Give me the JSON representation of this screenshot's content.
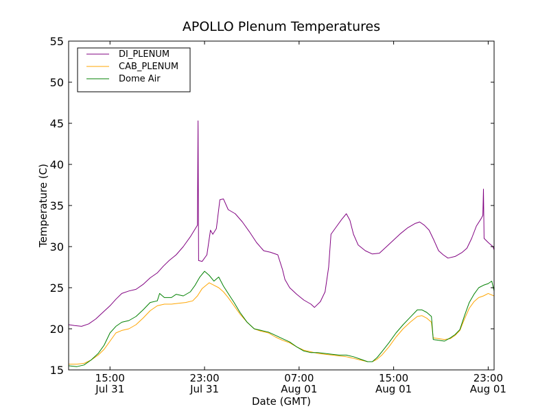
{
  "chart_data": {
    "type": "line",
    "title": "APOLLO Plenum Temperatures",
    "xlabel": "Date (GMT)",
    "ylabel": "Temperature (C)",
    "xlim": [
      11.5,
      47.5
    ],
    "ylim": [
      15,
      55
    ],
    "yticks": [
      15,
      20,
      25,
      30,
      35,
      40,
      45,
      50,
      55
    ],
    "xticks": [
      {
        "x": 15,
        "time": "15:00",
        "date": "Jul 31"
      },
      {
        "x": 23,
        "time": "23:00",
        "date": "Jul 31"
      },
      {
        "x": 31,
        "time": "07:00",
        "date": "Aug 01"
      },
      {
        "x": 39,
        "time": "15:00",
        "date": "Aug 01"
      },
      {
        "x": 47,
        "time": "23:00",
        "date": "Aug 01"
      }
    ],
    "legend_position": "top-left",
    "series": [
      {
        "name": "DI_PLENUM",
        "color": "#800080",
        "points": [
          [
            11.5,
            20.5
          ],
          [
            12.0,
            20.4
          ],
          [
            12.6,
            20.3
          ],
          [
            13.2,
            20.6
          ],
          [
            13.8,
            21.2
          ],
          [
            14.4,
            22.0
          ],
          [
            15.0,
            22.8
          ],
          [
            15.5,
            23.6
          ],
          [
            16.0,
            24.3
          ],
          [
            16.6,
            24.6
          ],
          [
            17.2,
            24.8
          ],
          [
            17.8,
            25.4
          ],
          [
            18.4,
            26.2
          ],
          [
            19.0,
            26.8
          ],
          [
            19.5,
            27.6
          ],
          [
            20.0,
            28.3
          ],
          [
            20.6,
            29.0
          ],
          [
            21.2,
            30.0
          ],
          [
            21.8,
            31.2
          ],
          [
            22.4,
            32.6
          ],
          [
            22.45,
            45.3
          ],
          [
            22.5,
            28.3
          ],
          [
            22.8,
            28.2
          ],
          [
            23.2,
            29.0
          ],
          [
            23.5,
            32.0
          ],
          [
            23.7,
            31.5
          ],
          [
            24.0,
            32.2
          ],
          [
            24.3,
            35.7
          ],
          [
            24.6,
            35.8
          ],
          [
            25.0,
            34.5
          ],
          [
            25.6,
            34.0
          ],
          [
            26.2,
            33.0
          ],
          [
            26.8,
            31.8
          ],
          [
            27.4,
            30.5
          ],
          [
            28.0,
            29.5
          ],
          [
            28.6,
            29.3
          ],
          [
            29.2,
            29.0
          ],
          [
            29.6,
            27.2
          ],
          [
            29.8,
            26.0
          ],
          [
            30.2,
            25.0
          ],
          [
            30.8,
            24.2
          ],
          [
            31.4,
            23.5
          ],
          [
            32.0,
            23.0
          ],
          [
            32.3,
            22.6
          ],
          [
            32.8,
            23.3
          ],
          [
            33.2,
            24.5
          ],
          [
            33.5,
            27.5
          ],
          [
            33.7,
            31.5
          ],
          [
            34.2,
            32.5
          ],
          [
            34.6,
            33.3
          ],
          [
            35.0,
            34.0
          ],
          [
            35.3,
            33.2
          ],
          [
            35.6,
            31.5
          ],
          [
            36.0,
            30.2
          ],
          [
            36.6,
            29.5
          ],
          [
            37.2,
            29.1
          ],
          [
            37.8,
            29.2
          ],
          [
            38.4,
            30.0
          ],
          [
            39.0,
            30.8
          ],
          [
            39.6,
            31.6
          ],
          [
            40.2,
            32.3
          ],
          [
            40.8,
            32.8
          ],
          [
            41.2,
            33.0
          ],
          [
            41.6,
            32.6
          ],
          [
            42.0,
            32.0
          ],
          [
            42.4,
            30.8
          ],
          [
            42.8,
            29.5
          ],
          [
            43.2,
            29.0
          ],
          [
            43.6,
            28.6
          ],
          [
            44.2,
            28.8
          ],
          [
            44.8,
            29.3
          ],
          [
            45.2,
            29.8
          ],
          [
            45.6,
            31.0
          ],
          [
            46.0,
            32.5
          ],
          [
            46.4,
            33.4
          ],
          [
            46.55,
            33.8
          ],
          [
            46.6,
            37.0
          ],
          [
            46.65,
            31.0
          ],
          [
            47.0,
            30.5
          ],
          [
            47.4,
            30.0
          ],
          [
            47.5,
            29.6
          ]
        ]
      },
      {
        "name": "CAB_PLENUM",
        "color": "#FFA500",
        "points": [
          [
            11.5,
            15.7
          ],
          [
            12.2,
            15.7
          ],
          [
            12.8,
            15.8
          ],
          [
            13.4,
            16.2
          ],
          [
            14.0,
            16.8
          ],
          [
            14.5,
            17.5
          ],
          [
            15.0,
            18.5
          ],
          [
            15.5,
            19.5
          ],
          [
            16.0,
            19.8
          ],
          [
            16.6,
            20.0
          ],
          [
            17.2,
            20.5
          ],
          [
            17.8,
            21.3
          ],
          [
            18.4,
            22.2
          ],
          [
            19.0,
            22.8
          ],
          [
            19.6,
            23.0
          ],
          [
            20.2,
            23.0
          ],
          [
            20.8,
            23.1
          ],
          [
            21.4,
            23.2
          ],
          [
            22.0,
            23.4
          ],
          [
            22.4,
            24.0
          ],
          [
            22.8,
            24.9
          ],
          [
            23.4,
            25.6
          ],
          [
            23.8,
            25.3
          ],
          [
            24.2,
            25.0
          ],
          [
            24.6,
            24.5
          ],
          [
            25.0,
            23.8
          ],
          [
            25.5,
            22.8
          ],
          [
            26.0,
            21.8
          ],
          [
            26.6,
            20.8
          ],
          [
            27.2,
            20.0
          ],
          [
            27.8,
            19.7
          ],
          [
            28.4,
            19.5
          ],
          [
            29.0,
            19.0
          ],
          [
            29.6,
            18.6
          ],
          [
            30.2,
            18.3
          ],
          [
            30.8,
            17.8
          ],
          [
            31.4,
            17.4
          ],
          [
            32.0,
            17.2
          ],
          [
            32.6,
            17.0
          ],
          [
            33.2,
            16.9
          ],
          [
            33.8,
            16.8
          ],
          [
            34.4,
            16.7
          ],
          [
            35.0,
            16.6
          ],
          [
            35.6,
            16.4
          ],
          [
            36.2,
            16.2
          ],
          [
            36.8,
            16.0
          ],
          [
            37.2,
            16.0
          ],
          [
            37.6,
            16.3
          ],
          [
            38.0,
            16.8
          ],
          [
            38.6,
            17.8
          ],
          [
            39.2,
            19.0
          ],
          [
            39.8,
            20.0
          ],
          [
            40.4,
            20.8
          ],
          [
            41.0,
            21.5
          ],
          [
            41.4,
            21.6
          ],
          [
            41.8,
            21.3
          ],
          [
            42.2,
            20.8
          ],
          [
            42.35,
            18.9
          ],
          [
            42.8,
            18.8
          ],
          [
            43.3,
            18.7
          ],
          [
            43.8,
            18.8
          ],
          [
            44.2,
            19.2
          ],
          [
            44.6,
            19.8
          ],
          [
            45.0,
            21.2
          ],
          [
            45.4,
            22.5
          ],
          [
            45.8,
            23.3
          ],
          [
            46.2,
            23.8
          ],
          [
            46.6,
            24.0
          ],
          [
            47.0,
            24.3
          ],
          [
            47.5,
            24.0
          ]
        ]
      },
      {
        "name": "Dome Air",
        "color": "#008000",
        "points": [
          [
            11.5,
            15.5
          ],
          [
            12.2,
            15.4
          ],
          [
            12.8,
            15.6
          ],
          [
            13.4,
            16.2
          ],
          [
            14.0,
            17.0
          ],
          [
            14.5,
            18.0
          ],
          [
            15.0,
            19.5
          ],
          [
            15.5,
            20.3
          ],
          [
            16.0,
            20.8
          ],
          [
            16.6,
            21.0
          ],
          [
            17.2,
            21.5
          ],
          [
            17.8,
            22.3
          ],
          [
            18.4,
            23.2
          ],
          [
            19.0,
            23.4
          ],
          [
            19.2,
            24.3
          ],
          [
            19.6,
            23.8
          ],
          [
            20.2,
            23.8
          ],
          [
            20.6,
            24.2
          ],
          [
            21.2,
            24.0
          ],
          [
            21.8,
            24.5
          ],
          [
            22.2,
            25.3
          ],
          [
            22.6,
            26.3
          ],
          [
            23.0,
            27.0
          ],
          [
            23.4,
            26.5
          ],
          [
            23.8,
            25.8
          ],
          [
            24.2,
            26.3
          ],
          [
            24.6,
            25.2
          ],
          [
            25.0,
            24.3
          ],
          [
            25.5,
            23.2
          ],
          [
            26.0,
            22.0
          ],
          [
            26.6,
            20.8
          ],
          [
            27.2,
            20.0
          ],
          [
            27.8,
            19.8
          ],
          [
            28.4,
            19.6
          ],
          [
            29.0,
            19.2
          ],
          [
            29.6,
            18.8
          ],
          [
            30.2,
            18.4
          ],
          [
            30.8,
            17.8
          ],
          [
            31.4,
            17.3
          ],
          [
            32.0,
            17.1
          ],
          [
            32.6,
            17.1
          ],
          [
            33.2,
            17.0
          ],
          [
            33.8,
            16.9
          ],
          [
            34.4,
            16.8
          ],
          [
            35.0,
            16.8
          ],
          [
            35.6,
            16.6
          ],
          [
            36.2,
            16.3
          ],
          [
            36.8,
            16.0
          ],
          [
            37.2,
            16.0
          ],
          [
            37.6,
            16.5
          ],
          [
            38.0,
            17.2
          ],
          [
            38.6,
            18.3
          ],
          [
            39.2,
            19.5
          ],
          [
            39.8,
            20.5
          ],
          [
            40.4,
            21.4
          ],
          [
            41.0,
            22.3
          ],
          [
            41.4,
            22.3
          ],
          [
            41.8,
            22.0
          ],
          [
            42.2,
            21.5
          ],
          [
            42.35,
            18.7
          ],
          [
            42.8,
            18.6
          ],
          [
            43.3,
            18.5
          ],
          [
            43.8,
            18.9
          ],
          [
            44.2,
            19.3
          ],
          [
            44.6,
            19.9
          ],
          [
            45.0,
            21.6
          ],
          [
            45.4,
            23.2
          ],
          [
            45.8,
            24.2
          ],
          [
            46.2,
            25.0
          ],
          [
            46.6,
            25.3
          ],
          [
            47.0,
            25.5
          ],
          [
            47.3,
            25.8
          ],
          [
            47.5,
            24.6
          ]
        ]
      }
    ]
  }
}
